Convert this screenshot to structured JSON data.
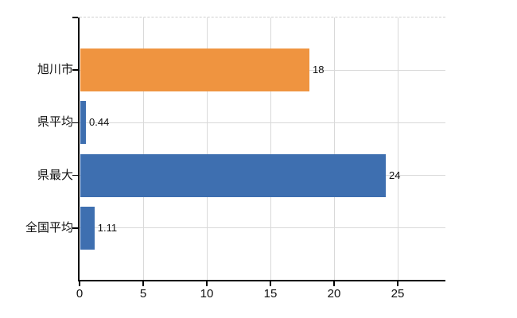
{
  "chart_data": {
    "type": "bar",
    "orientation": "horizontal",
    "title": "",
    "categories": [
      "旭川市",
      "県平均",
      "県最大",
      "全国平均"
    ],
    "values": [
      18,
      0.44,
      24,
      1.11
    ],
    "value_labels": [
      "18",
      "0.44",
      "24",
      "1.11"
    ],
    "bar_colors": [
      "#ef9440",
      "#3e6fb0",
      "#3e6fb0",
      "#3e6fb0"
    ],
    "x_ticks": [
      0,
      5,
      10,
      15,
      20,
      25
    ],
    "x_tick_labels": [
      "0",
      "5",
      "10",
      "15",
      "20",
      "25"
    ],
    "xlim": [
      0,
      28.75
    ],
    "xlabel": "",
    "ylabel": "",
    "grid": true,
    "legend": false
  },
  "colors": {
    "bar_orange": "#ef9440",
    "bar_blue": "#3e6fb0",
    "gridline": "#d9d9d9",
    "axis": "#000000",
    "label_text": "#111111",
    "background": "#ffffff"
  }
}
